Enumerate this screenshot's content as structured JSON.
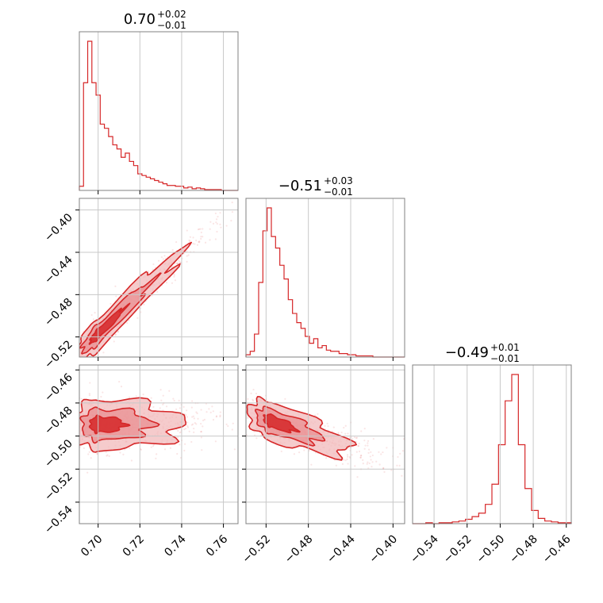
{
  "colors": {
    "accent": "#d62728",
    "fill_light": "#f2b9bb",
    "fill_mid": "#e88a8d",
    "fill_dark": "#d62728",
    "grid": "#c8c8c8",
    "frame": "#808080"
  },
  "chart_data": {
    "type": "corner",
    "parameters": [
      {
        "title_main": "0.70",
        "title_plus": "+0.02",
        "title_minus": "−0.01",
        "median": 0.7,
        "err_plus": 0.02,
        "err_minus": 0.01,
        "range": [
          0.691,
          0.767
        ],
        "ticks": [
          0.7,
          0.72,
          0.74,
          0.76
        ],
        "tick_labels": [
          "0.70",
          "0.72",
          "0.74",
          "0.76"
        ]
      },
      {
        "title_main": "−0.51",
        "title_plus": "+0.03",
        "title_minus": "−0.01",
        "median": -0.51,
        "err_plus": 0.03,
        "err_minus": 0.01,
        "range": [
          -0.539,
          -0.389
        ],
        "ticks": [
          -0.52,
          -0.48,
          -0.44,
          -0.4
        ],
        "tick_labels": [
          "−0.52",
          "−0.48",
          "−0.44",
          "−0.40"
        ]
      },
      {
        "title_main": "−0.49",
        "title_plus": "+0.01",
        "title_minus": "−0.01",
        "median": -0.49,
        "err_plus": 0.01,
        "err_minus": 0.01,
        "range": [
          -0.553,
          -0.457
        ],
        "ticks": [
          -0.54,
          -0.52,
          -0.5,
          -0.48,
          -0.46
        ],
        "tick_labels": [
          "−0.54",
          "−0.52",
          "−0.50",
          "−0.48",
          "−0.46"
        ]
      }
    ],
    "histograms": [
      {
        "param": 0,
        "edges": [
          0.691,
          0.693,
          0.695,
          0.697,
          0.699,
          0.701,
          0.703,
          0.705,
          0.707,
          0.709,
          0.711,
          0.713,
          0.715,
          0.717,
          0.719,
          0.721,
          0.723,
          0.725,
          0.727,
          0.729,
          0.731,
          0.733,
          0.735,
          0.737,
          0.739,
          0.741,
          0.743,
          0.745,
          0.747,
          0.749,
          0.751,
          0.753,
          0.755,
          0.757,
          0.759,
          0.761,
          0.763,
          0.765,
          0.767
        ],
        "counts": [
          5,
          130,
          180,
          130,
          115,
          80,
          75,
          65,
          55,
          50,
          40,
          45,
          35,
          30,
          20,
          18,
          16,
          14,
          12,
          10,
          8,
          6,
          6,
          5,
          5,
          3,
          4,
          2,
          3,
          2,
          1,
          1,
          1,
          1,
          0,
          0,
          0,
          0
        ]
      },
      {
        "param": 1,
        "edges": [
          -0.539,
          -0.535,
          -0.531,
          -0.527,
          -0.523,
          -0.519,
          -0.515,
          -0.511,
          -0.507,
          -0.503,
          -0.499,
          -0.495,
          -0.491,
          -0.487,
          -0.483,
          -0.479,
          -0.475,
          -0.471,
          -0.467,
          -0.463,
          -0.459,
          -0.455,
          -0.451,
          -0.447,
          -0.443,
          -0.439,
          -0.435,
          -0.431,
          -0.427,
          -0.423,
          -0.419,
          -0.415,
          -0.411,
          -0.407,
          -0.403,
          -0.399,
          -0.395,
          -0.391,
          -0.389
        ],
        "counts": [
          2,
          5,
          20,
          65,
          110,
          130,
          105,
          95,
          80,
          68,
          50,
          38,
          30,
          25,
          18,
          12,
          16,
          8,
          10,
          6,
          5,
          5,
          3,
          3,
          2,
          2,
          1,
          1,
          1,
          1,
          0,
          0,
          0,
          0,
          0,
          0,
          0,
          0
        ]
      },
      {
        "param": 2,
        "edges": [
          -0.553,
          -0.549,
          -0.545,
          -0.541,
          -0.537,
          -0.533,
          -0.529,
          -0.525,
          -0.521,
          -0.517,
          -0.513,
          -0.509,
          -0.505,
          -0.501,
          -0.497,
          -0.493,
          -0.489,
          -0.485,
          -0.481,
          -0.477,
          -0.473,
          -0.469,
          -0.465,
          -0.461,
          -0.457
        ],
        "counts": [
          0,
          0,
          1,
          0,
          1,
          1,
          2,
          3,
          5,
          8,
          12,
          22,
          45,
          90,
          140,
          170,
          90,
          40,
          15,
          6,
          3,
          2,
          1,
          1
        ]
      }
    ],
    "pairs": [
      {
        "x_param": 0,
        "y_param": 1,
        "center": [
          0.7,
          -0.517
        ],
        "cov": [
          [
            0.00015,
            0.000285
          ],
          [
            0.000285,
            0.0006
          ]
        ]
      },
      {
        "x_param": 0,
        "y_param": 2,
        "center": [
          0.7,
          -0.493
        ],
        "cov": [
          [
            0.00015,
            0.0
          ],
          [
            0.0,
            6e-05
          ]
        ]
      },
      {
        "x_param": 1,
        "y_param": 2,
        "center": [
          -0.515,
          -0.491
        ],
        "cov": [
          [
            0.0005,
            -0.00011
          ],
          [
            -0.00011,
            6e-05
          ]
        ]
      }
    ]
  }
}
